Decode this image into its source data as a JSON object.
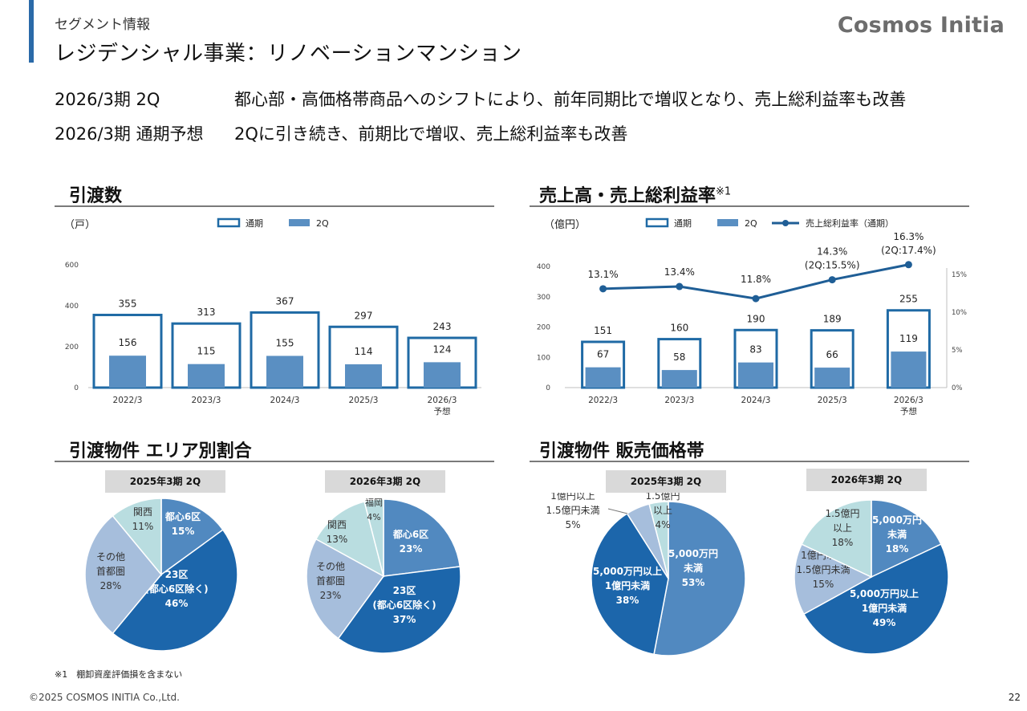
{
  "header": {
    "segment_label": "セグメント情報",
    "title": "レジデンシャル事業：リノベーションマンション",
    "brand": "Cosmos Initia"
  },
  "summary": [
    {
      "period": "2026/3期 2Q",
      "text": "都心部・高価格帯商品へのシフトにより、前年同期比で増収となり、売上総利益率も改善"
    },
    {
      "period": "2026/3期 通期予想",
      "text": "2Qに引き続き、前期比で増収、売上総利益率も改善"
    }
  ],
  "sections": {
    "deliveries": "引渡数",
    "sales": "売上高・売上総利益率",
    "sales_note_mark": "※1",
    "area": "引渡物件 エリア別割合",
    "price": "引渡物件 販売価格帯"
  },
  "colors": {
    "accent": "#2a6aa8",
    "outline": "#1f6aa5",
    "bar_2q": "#5a8fc2",
    "line": "#1f5e96",
    "pie_dark": "#1c66ab",
    "pie_mid": "#5189c0",
    "pie_light": "#a6bedc",
    "pie_pale": "#b9dde0"
  },
  "chart_data": [
    {
      "id": "deliveries",
      "type": "bar",
      "unit_label": "（戸）",
      "categories": [
        "2022/3",
        "2023/3",
        "2024/3",
        "2025/3",
        "2026/3\n予想"
      ],
      "series": [
        {
          "name": "通期",
          "values": [
            355,
            313,
            367,
            297,
            243
          ]
        },
        {
          "name": "2Q",
          "values": [
            156,
            115,
            155,
            114,
            124
          ]
        }
      ],
      "ylim": [
        0,
        600
      ],
      "yticks": [
        "0",
        "200",
        "400",
        "600"
      ],
      "ytick_values": [
        0,
        200,
        400,
        600
      ],
      "legend": [
        "通期",
        "2Q"
      ]
    },
    {
      "id": "sales",
      "type": "bar",
      "unit_label": "（億円）",
      "categories": [
        "2022/3",
        "2023/3",
        "2024/3",
        "2025/3",
        "2026/3\n予想"
      ],
      "series": [
        {
          "name": "通期",
          "values": [
            151,
            160,
            190,
            189,
            255
          ]
        },
        {
          "name": "2Q",
          "values": [
            67,
            58,
            83,
            66,
            119
          ]
        },
        {
          "name": "売上総利益率（通期）",
          "type": "line",
          "axis": "right",
          "values": [
            13.1,
            13.4,
            11.8,
            14.3,
            16.3
          ],
          "labels": [
            "13.1%",
            "13.4%",
            "11.8%",
            "14.3%\n(2Q:15.5%)",
            "16.3%\n(2Q:17.4%)"
          ]
        }
      ],
      "ylim": [
        0,
        400
      ],
      "yticks": [
        "0",
        "100",
        "200",
        "300",
        "400"
      ],
      "ytick_values": [
        0,
        100,
        200,
        300,
        400
      ],
      "y2lim": [
        0,
        15
      ],
      "y2ticks": [
        "0%",
        "5%",
        "10%",
        "15%"
      ],
      "y2tick_values": [
        0,
        5,
        10,
        15
      ],
      "legend": [
        "通期",
        "2Q",
        "売上総利益率（通期）"
      ]
    },
    {
      "id": "area_2025",
      "type": "pie",
      "title": "2025年3期 2Q",
      "slices": [
        {
          "label": "都心6区",
          "value": 15,
          "pct": "15%",
          "color": "pie_mid"
        },
        {
          "label": "23区\n(都心6区除く)",
          "value": 46,
          "pct": "46%",
          "color": "pie_dark"
        },
        {
          "label": "その他\n首都圏",
          "value": 28,
          "pct": "28%",
          "color": "pie_light"
        },
        {
          "label": "関西",
          "value": 11,
          "pct": "11%",
          "color": "pie_pale"
        }
      ]
    },
    {
      "id": "area_2026",
      "type": "pie",
      "title": "2026年3期 2Q",
      "slices": [
        {
          "label": "都心6区",
          "value": 23,
          "pct": "23%",
          "color": "pie_mid"
        },
        {
          "label": "23区\n(都心6区除く)",
          "value": 37,
          "pct": "37%",
          "color": "pie_dark"
        },
        {
          "label": "その他\n首都圏",
          "value": 23,
          "pct": "23%",
          "color": "pie_light"
        },
        {
          "label": "関西",
          "value": 13,
          "pct": "13%",
          "color": "pie_pale"
        },
        {
          "label": "福岡",
          "value": 4,
          "pct": "4%",
          "color": "pie_pale"
        }
      ]
    },
    {
      "id": "price_2025",
      "type": "pie",
      "title": "2025年3期 2Q",
      "slices": [
        {
          "label": "5,000万円\n未満",
          "value": 53,
          "pct": "53%",
          "color": "pie_mid"
        },
        {
          "label": "5,000万円以上\n1億円未満",
          "value": 38,
          "pct": "38%",
          "color": "pie_dark"
        },
        {
          "label": "1億円以上\n1.5億円未満",
          "value": 5,
          "pct": "5%",
          "color": "pie_light"
        },
        {
          "label": "1.5億円\n以上",
          "value": 4,
          "pct": "4%",
          "color": "pie_pale"
        }
      ]
    },
    {
      "id": "price_2026",
      "type": "pie",
      "title": "2026年3期 2Q",
      "slices": [
        {
          "label": "5,000万円\n未満",
          "value": 18,
          "pct": "18%",
          "color": "pie_mid"
        },
        {
          "label": "5,000万円以上\n1億円未満",
          "value": 49,
          "pct": "49%",
          "color": "pie_dark"
        },
        {
          "label": "1億円以上\n1.5億円未満",
          "value": 15,
          "pct": "15%",
          "color": "pie_light"
        },
        {
          "label": "1.5億円\n以上",
          "value": 18,
          "pct": "18%",
          "color": "pie_pale"
        }
      ]
    }
  ],
  "footer": {
    "footnote": "※1　棚卸資産評価損を含まない",
    "copyright": "©2025 COSMOS INITIA Co.,Ltd.",
    "page_number": "22"
  }
}
